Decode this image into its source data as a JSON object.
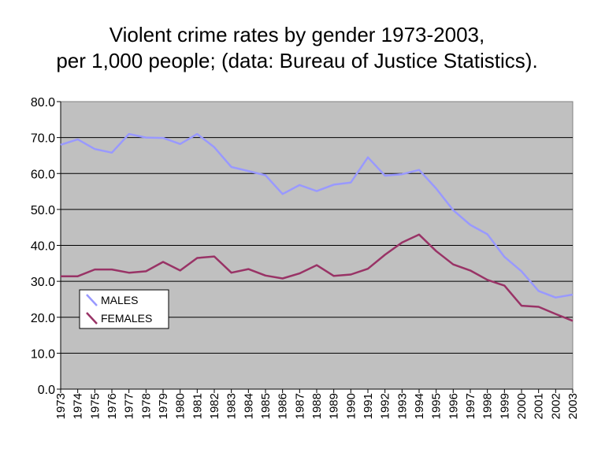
{
  "chart_data": {
    "type": "line",
    "title_line1": "Violent crime rates by gender 1973-2003,",
    "title_line2": "per 1,000 people; (data: Bureau of Justice Statistics).",
    "xlabel": "",
    "ylabel": "",
    "ylim": [
      0,
      80
    ],
    "yticks": [
      "0.0",
      "10.0",
      "20.0",
      "30.0",
      "40.0",
      "50.0",
      "60.0",
      "70.0",
      "80.0"
    ],
    "grid": true,
    "legend_position": "left",
    "plot_background": "#c0c0c0",
    "categories": [
      "1973",
      "1974",
      "1975",
      "1976",
      "1977",
      "1978",
      "1979",
      "1980",
      "1981",
      "1982",
      "1983",
      "1984",
      "1985",
      "1986",
      "1987",
      "1988",
      "1989",
      "1990",
      "1991",
      "1992",
      "1993",
      "1994",
      "1995",
      "1996",
      "1997",
      "1998",
      "1999",
      "2000",
      "2001",
      "2002",
      "2003"
    ],
    "series": [
      {
        "name": "MALES",
        "color": "#9999ff",
        "values": [
          68.0,
          69.5,
          66.8,
          65.8,
          71.0,
          70.0,
          69.9,
          68.2,
          71.0,
          67.3,
          61.8,
          60.7,
          59.5,
          54.3,
          56.8,
          55.1,
          56.9,
          57.5,
          64.5,
          59.4,
          59.8,
          61.0,
          55.8,
          49.8,
          45.7,
          43.1,
          36.8,
          32.8,
          27.3,
          25.5,
          26.3
        ]
      },
      {
        "name": "FEMALES",
        "color": "#993366",
        "values": [
          31.4,
          31.4,
          33.3,
          33.3,
          32.4,
          32.8,
          35.4,
          33.0,
          36.5,
          36.9,
          32.4,
          33.4,
          31.6,
          30.8,
          32.2,
          34.5,
          31.5,
          31.9,
          33.5,
          37.4,
          40.8,
          43.0,
          38.4,
          34.7,
          33.0,
          30.4,
          28.8,
          23.2,
          22.9,
          20.9,
          19.0
        ]
      }
    ]
  }
}
